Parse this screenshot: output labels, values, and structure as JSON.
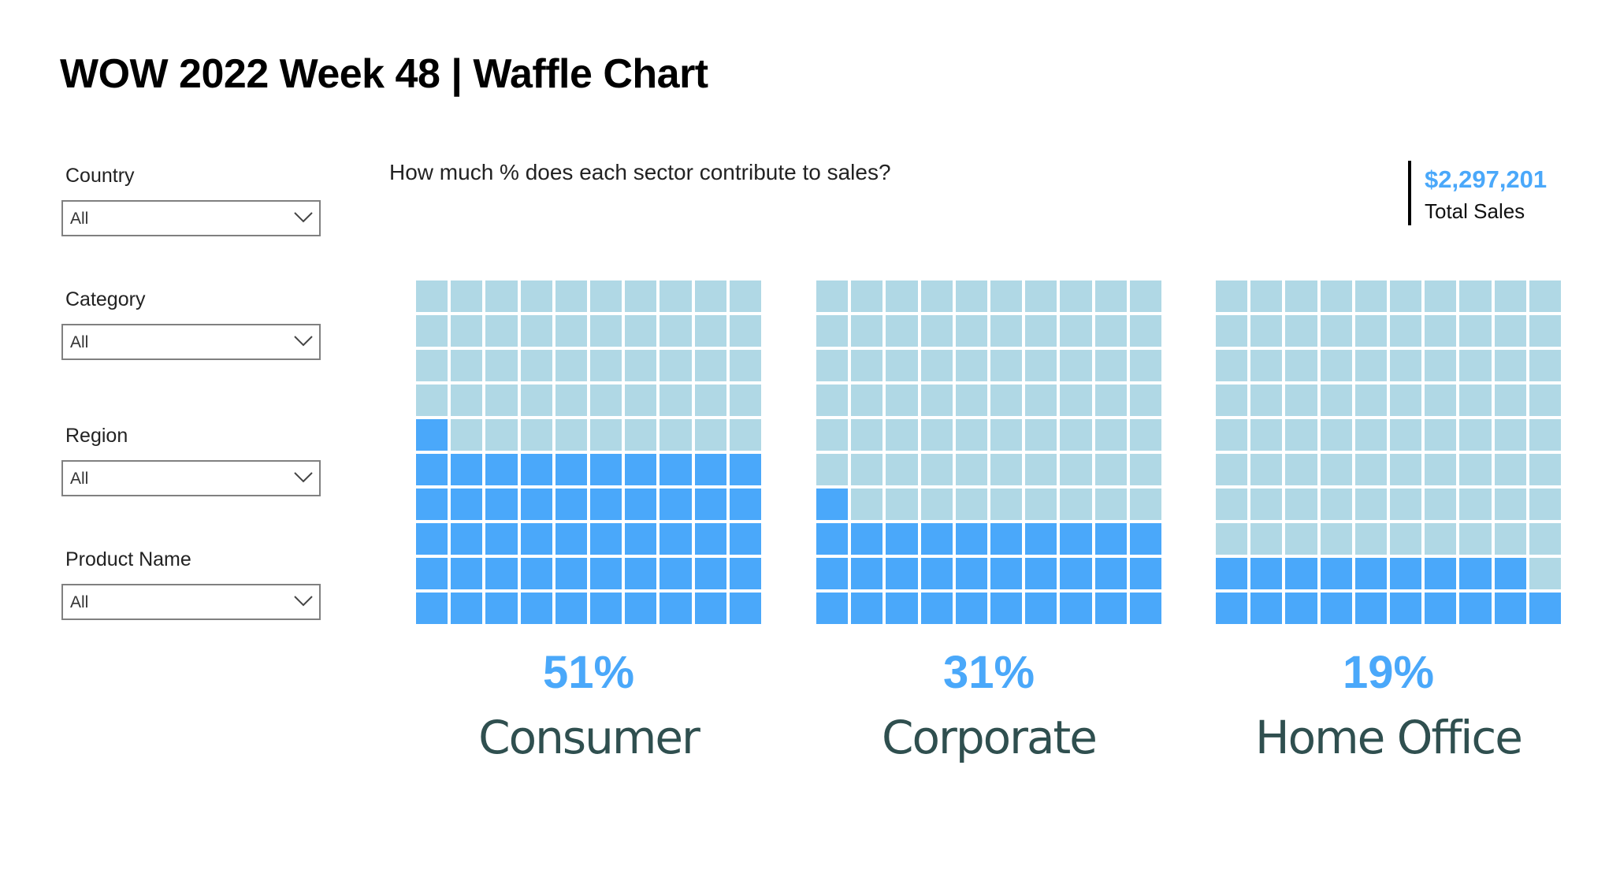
{
  "title": "WOW 2022 Week 48 | Waffle Chart",
  "filters": [
    {
      "label": "Country",
      "value": "All"
    },
    {
      "label": "Category",
      "value": "All"
    },
    {
      "label": "Region",
      "value": "All"
    },
    {
      "label": "Product Name",
      "value": "All"
    }
  ],
  "question": "How much % does each sector contribute to sales?",
  "kpi": {
    "value": "$2,297,201",
    "label": "Total Sales"
  },
  "colors": {
    "filled": "#4aa8fa",
    "empty": "#b0d8e5",
    "segment_text": "#2f4f4f"
  },
  "chart_data": {
    "type": "waffle",
    "grid": "10x10",
    "categories": [
      "Consumer",
      "Corporate",
      "Home Office"
    ],
    "values": [
      51,
      31,
      19
    ],
    "labels": [
      "51%",
      "31%",
      "19%"
    ]
  }
}
